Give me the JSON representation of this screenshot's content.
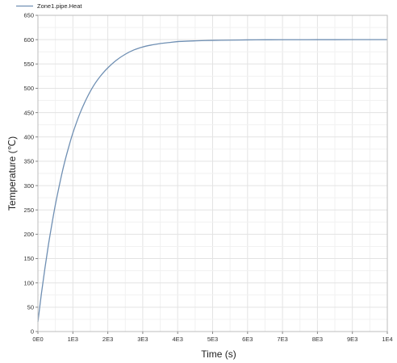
{
  "chart_data": {
    "type": "line",
    "title": "",
    "xlabel": "Time (s)",
    "ylabel": "Temperature (℃)",
    "xlim": [
      0,
      10000
    ],
    "ylim": [
      0,
      650
    ],
    "grid": true,
    "legend_position": "top-left",
    "x_ticks": [
      {
        "value": 0,
        "label": "0E0"
      },
      {
        "value": 1000,
        "label": "1E3"
      },
      {
        "value": 2000,
        "label": "2E3"
      },
      {
        "value": 3000,
        "label": "3E3"
      },
      {
        "value": 4000,
        "label": "4E3"
      },
      {
        "value": 5000,
        "label": "5E3"
      },
      {
        "value": 6000,
        "label": "6E3"
      },
      {
        "value": 7000,
        "label": "7E3"
      },
      {
        "value": 8000,
        "label": "8E3"
      },
      {
        "value": 9000,
        "label": "9E3"
      },
      {
        "value": 10000,
        "label": "1E4"
      }
    ],
    "y_ticks": [
      {
        "value": 0,
        "label": "0"
      },
      {
        "value": 50,
        "label": "50"
      },
      {
        "value": 100,
        "label": "100"
      },
      {
        "value": 150,
        "label": "150"
      },
      {
        "value": 200,
        "label": "200"
      },
      {
        "value": 250,
        "label": "250"
      },
      {
        "value": 300,
        "label": "300"
      },
      {
        "value": 350,
        "label": "350"
      },
      {
        "value": 400,
        "label": "400"
      },
      {
        "value": 450,
        "label": "450"
      },
      {
        "value": 500,
        "label": "500"
      },
      {
        "value": 550,
        "label": "550"
      },
      {
        "value": 600,
        "label": "600"
      },
      {
        "value": 650,
        "label": "650"
      }
    ],
    "series": [
      {
        "name": "Zone1.pipe.Heat",
        "color": "#6f8fb3",
        "x": [
          0,
          100,
          200,
          300,
          400,
          500,
          600,
          700,
          800,
          900,
          1000,
          1200,
          1400,
          1600,
          1800,
          2000,
          2250,
          2500,
          2750,
          3000,
          3250,
          3500,
          3750,
          4000,
          4500,
          5000,
          5500,
          6000,
          6500,
          7000,
          8000,
          9000,
          10000
        ],
        "y": [
          20,
          78,
          130,
          178,
          221,
          261,
          296,
          329,
          358,
          384,
          408,
          448,
          480,
          506,
          526,
          542,
          558,
          570,
          579,
          585,
          589,
          592,
          594,
          596,
          597.5,
          598.5,
          599,
          599.5,
          599.7,
          599.8,
          599.9,
          600,
          600
        ]
      }
    ]
  }
}
